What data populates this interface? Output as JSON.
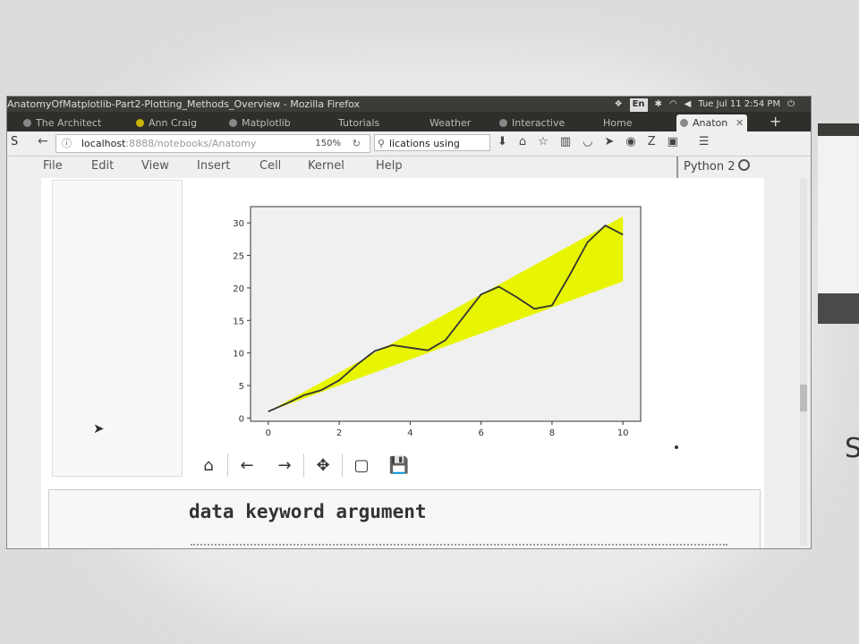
{
  "window": {
    "title": "AnatomyOfMatplotlib-Part2-Plotting_Methods_Overview - Mozilla Firefox",
    "sys": {
      "lang": "En",
      "clock": "Tue Jul 11 2:54 PM"
    }
  },
  "tabs": [
    {
      "label": "The Architect"
    },
    {
      "label": "Ann Craig"
    },
    {
      "label": "Matplotlib"
    },
    {
      "label": "Tutorials"
    },
    {
      "label": "Weather"
    },
    {
      "label": "Interactive"
    },
    {
      "label": "Home"
    },
    {
      "label": "Anaton"
    }
  ],
  "nav": {
    "url_host": "localhost",
    "url_path": ":8888/notebooks/Anatomy",
    "zoom": "150%",
    "search": "lications using"
  },
  "menu": [
    "File",
    "Edit",
    "View",
    "Insert",
    "Cell",
    "Kernel",
    "Help"
  ],
  "kernel": "Python 2",
  "toolbar_icons": [
    "home-icon",
    "back-arrow-icon",
    "forward-arrow-icon",
    "pan-icon",
    "zoom-rect-icon",
    "save-icon"
  ],
  "markdown": {
    "heading": "data keyword argument"
  },
  "right_letter": "S",
  "colors": {
    "fill": "#e8f500",
    "line": "#333333",
    "titlebar": "#3c3b37"
  },
  "chart_data": {
    "type": "line",
    "x": [
      0,
      0.5,
      1,
      1.5,
      2,
      2.5,
      3,
      3.5,
      4,
      4.5,
      5,
      5.5,
      6,
      6.5,
      7,
      7.5,
      8,
      8.5,
      9,
      9.5,
      10
    ],
    "series": [
      {
        "values": [
          1,
          2.2,
          3.5,
          4.3,
          5.8,
          8.2,
          10.3,
          11.2,
          10.8,
          10.4,
          12,
          15.5,
          19,
          20.2,
          18.6,
          16.8,
          17.3,
          22,
          27,
          29.6,
          28.2
        ]
      }
    ],
    "band": {
      "x": [
        0,
        10
      ],
      "lower": [
        1,
        21
      ],
      "upper": [
        1,
        31
      ]
    },
    "xticks": [
      "0",
      "2",
      "4",
      "6",
      "8",
      "10"
    ],
    "yticks": [
      "0",
      "5",
      "10",
      "15",
      "20",
      "25",
      "30"
    ],
    "xlim": [
      -0.5,
      10.5
    ],
    "ylim": [
      -0.5,
      32.5
    ],
    "grid": false
  }
}
